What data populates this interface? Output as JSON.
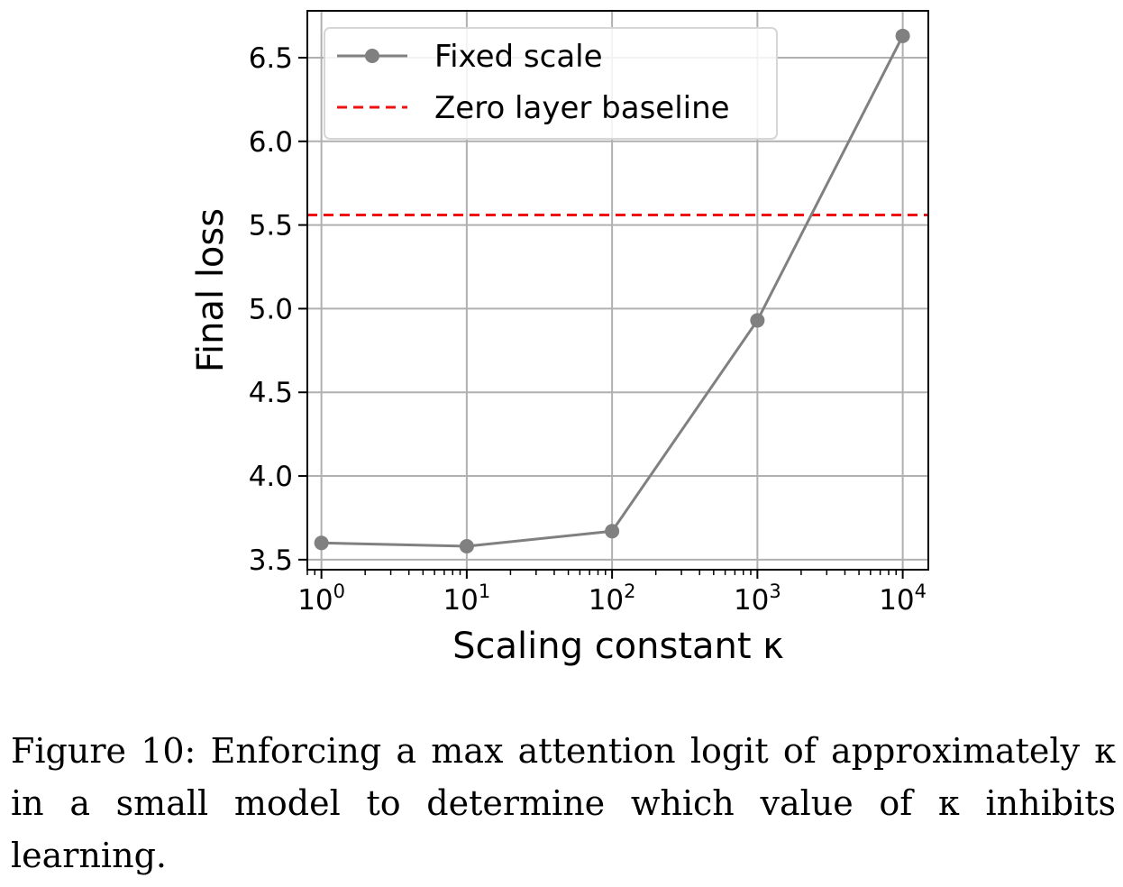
{
  "chart_data": {
    "type": "line",
    "xlabel": "Scaling constant κ",
    "ylabel": "Final loss",
    "xscale": "log",
    "xlim": [
      0.8,
      15000
    ],
    "ylim": [
      3.44,
      6.78
    ],
    "grid": true,
    "legend_position": "top-left",
    "x_ticks": [
      {
        "value": 1,
        "base": "10",
        "exp": "0"
      },
      {
        "value": 10,
        "base": "10",
        "exp": "1"
      },
      {
        "value": 100,
        "base": "10",
        "exp": "2"
      },
      {
        "value": 1000,
        "base": "10",
        "exp": "3"
      },
      {
        "value": 10000,
        "base": "10",
        "exp": "4"
      }
    ],
    "y_ticks": [
      {
        "value": 3.5,
        "label": "3.5"
      },
      {
        "value": 4.0,
        "label": "4.0"
      },
      {
        "value": 4.5,
        "label": "4.5"
      },
      {
        "value": 5.0,
        "label": "5.0"
      },
      {
        "value": 5.5,
        "label": "5.5"
      },
      {
        "value": 6.0,
        "label": "6.0"
      },
      {
        "value": 6.5,
        "label": "6.5"
      }
    ],
    "series": [
      {
        "name": "Fixed scale",
        "color": "#808080",
        "marker": "circle",
        "x": [
          1,
          10,
          100,
          1000,
          10000
        ],
        "values": [
          3.6,
          3.58,
          3.67,
          4.93,
          6.63
        ]
      }
    ],
    "baseline": {
      "name": "Zero layer baseline",
      "color": "#ee1111",
      "style": "dashed",
      "value": 5.56
    }
  },
  "caption": "Figure 10: Enforcing a max attention logit of approximately κ in a small model to determine which value of κ inhibits learning."
}
